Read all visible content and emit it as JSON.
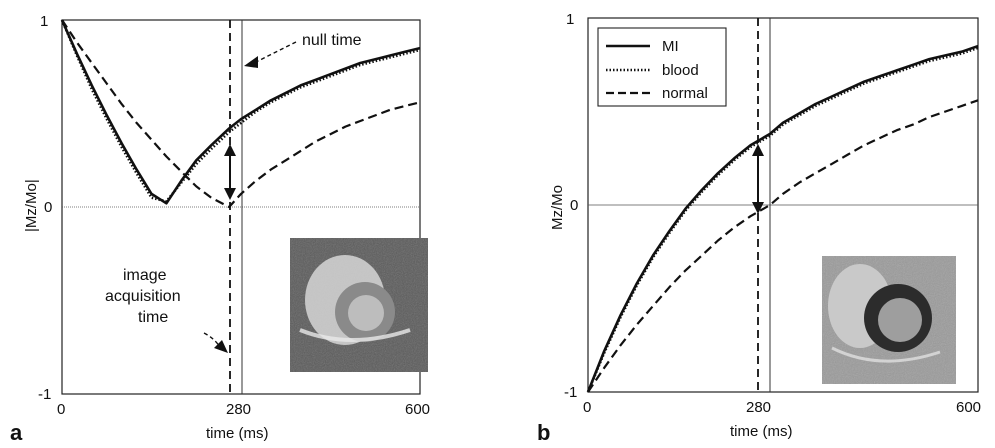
{
  "chart_data": [
    {
      "type": "line",
      "panel_label": "a",
      "xlabel": "time (ms)",
      "ylabel": "|Mz/Mo|",
      "xlim": [
        0,
        600
      ],
      "ylim": [
        -1,
        1
      ],
      "x_ticks": [
        "0",
        "280",
        "600"
      ],
      "y_ticks": [
        "-1",
        "0",
        "1"
      ],
      "x": [
        0,
        25,
        50,
        75,
        100,
        125,
        150,
        175,
        200,
        225,
        250,
        280,
        300,
        325,
        350,
        375,
        400,
        425,
        450,
        475,
        500,
        525,
        550,
        575,
        600
      ],
      "series": [
        {
          "name": "MI",
          "style": "solid",
          "values": [
            1.0,
            0.82,
            0.65,
            0.49,
            0.34,
            0.2,
            0.07,
            0.02,
            0.14,
            0.25,
            0.33,
            0.42,
            0.47,
            0.52,
            0.57,
            0.61,
            0.65,
            0.68,
            0.71,
            0.74,
            0.77,
            0.79,
            0.81,
            0.83,
            0.85
          ]
        },
        {
          "name": "blood",
          "style": "dotted",
          "values": [
            1.0,
            0.81,
            0.63,
            0.47,
            0.32,
            0.18,
            0.05,
            0.03,
            0.13,
            0.23,
            0.31,
            0.4,
            0.45,
            0.51,
            0.56,
            0.6,
            0.64,
            0.67,
            0.7,
            0.73,
            0.76,
            0.78,
            0.8,
            0.82,
            0.84
          ]
        },
        {
          "name": "normal",
          "style": "dashed",
          "values": [
            1.0,
            0.88,
            0.77,
            0.66,
            0.55,
            0.45,
            0.36,
            0.27,
            0.19,
            0.11,
            0.05,
            0.0,
            0.07,
            0.14,
            0.2,
            0.25,
            0.3,
            0.35,
            0.39,
            0.43,
            0.46,
            0.49,
            0.52,
            0.54,
            0.56
          ]
        }
      ],
      "vertical_lines": [
        {
          "x": 280,
          "style": "solid",
          "label": "null time"
        },
        {
          "x": 263,
          "style": "dashed",
          "label": "image acquisition time"
        }
      ],
      "arrow": {
        "x": 263,
        "y_from": 0.31,
        "y_to": 0.07
      },
      "annotations": [
        {
          "text": "null time"
        },
        {
          "text": "image acquisition time",
          "lines": [
            "image",
            "acquisition",
            "time"
          ]
        }
      ],
      "grid": false,
      "zero_line": true,
      "inset": "cardiac MR image (dark myocardium)"
    },
    {
      "type": "line",
      "panel_label": "b",
      "xlabel": "time (ms)",
      "ylabel": "Mz/Mo",
      "xlim": [
        0,
        600
      ],
      "ylim": [
        -1,
        1
      ],
      "x_ticks": [
        "0",
        "280",
        "600"
      ],
      "y_ticks": [
        "-1",
        "0",
        "1"
      ],
      "x": [
        0,
        25,
        50,
        75,
        100,
        125,
        150,
        175,
        200,
        225,
        250,
        280,
        300,
        325,
        350,
        375,
        400,
        425,
        450,
        475,
        500,
        525,
        550,
        575,
        600
      ],
      "series": [
        {
          "name": "MI",
          "style": "solid",
          "values": [
            -1.0,
            -0.78,
            -0.59,
            -0.42,
            -0.27,
            -0.14,
            -0.02,
            0.08,
            0.17,
            0.25,
            0.32,
            0.38,
            0.44,
            0.49,
            0.54,
            0.58,
            0.62,
            0.66,
            0.69,
            0.72,
            0.75,
            0.78,
            0.8,
            0.82,
            0.85
          ]
        },
        {
          "name": "blood",
          "style": "dotted",
          "values": [
            -1.0,
            -0.79,
            -0.6,
            -0.43,
            -0.28,
            -0.15,
            -0.03,
            0.07,
            0.16,
            0.24,
            0.31,
            0.37,
            0.43,
            0.48,
            0.53,
            0.57,
            0.61,
            0.65,
            0.68,
            0.71,
            0.74,
            0.77,
            0.79,
            0.81,
            0.84
          ]
        },
        {
          "name": "normal",
          "style": "dashed",
          "values": [
            -1.0,
            -0.87,
            -0.75,
            -0.64,
            -0.54,
            -0.44,
            -0.35,
            -0.27,
            -0.19,
            -0.12,
            -0.06,
            0.0,
            0.06,
            0.12,
            0.17,
            0.22,
            0.27,
            0.32,
            0.36,
            0.4,
            0.43,
            0.47,
            0.5,
            0.53,
            0.56
          ]
        }
      ],
      "vertical_lines": [
        {
          "x": 280,
          "style": "solid"
        },
        {
          "x": 263,
          "style": "dashed"
        }
      ],
      "arrow": {
        "x": 263,
        "y_from": 0.35,
        "y_to": -0.03
      },
      "legend": {
        "placement": "top-left",
        "entries": [
          "MI",
          "blood",
          "normal"
        ]
      },
      "grid": false,
      "zero_line": true,
      "inset": "cardiac MR image (bright myocardium)"
    }
  ]
}
